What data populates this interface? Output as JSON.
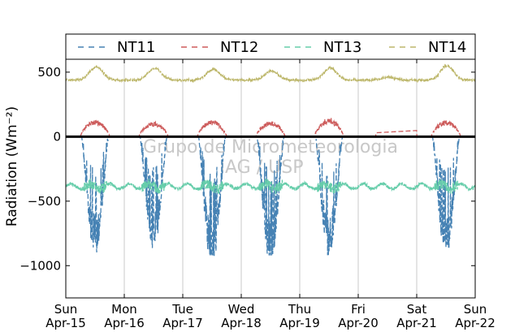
{
  "chart_data": {
    "type": "line",
    "title": "",
    "ylabel": "Radiation",
    "ylabel_unit_math": "(Wm⁻²)",
    "xlabel": "",
    "ylim": [
      -1250,
      600
    ],
    "yticks": [
      500,
      0,
      -500,
      -1000
    ],
    "ytick_labels": [
      "500",
      "0",
      "−500",
      "−1000"
    ],
    "x_tick_labels": [
      {
        "day": "Sun",
        "date": "Apr-15"
      },
      {
        "day": "Mon",
        "date": "Apr-16"
      },
      {
        "day": "Tue",
        "date": "Apr-17"
      },
      {
        "day": "Wed",
        "date": "Apr-18"
      },
      {
        "day": "Thu",
        "date": "Apr-19"
      },
      {
        "day": "Fri",
        "date": "Apr-20"
      },
      {
        "day": "Sat",
        "date": "Apr-21"
      },
      {
        "day": "Sun",
        "date": "Apr-22"
      }
    ],
    "x_range_days": [
      0,
      7
    ],
    "grid": "vertical",
    "legend_position": "top",
    "zero_line": true,
    "watermark": [
      "Grupo de Micrometeorologia",
      "IAG / USP"
    ],
    "series": [
      {
        "name": "NT11",
        "color": "#4682b4",
        "style": "dashed",
        "description_values": {
          "night": 0,
          "daily_min": [
            -800,
            -770,
            -900,
            -880,
            -820,
            null,
            -820
          ],
          "missing_days": [
            5
          ]
        }
      },
      {
        "name": "NT12",
        "color": "#cd5c5c",
        "style": "dashed",
        "description_values": {
          "night": 0,
          "daily_peak": [
            125,
            110,
            125,
            115,
            140,
            55,
            120
          ]
        }
      },
      {
        "name": "NT13",
        "color": "#66cdaa",
        "style": "dashed",
        "description_values": {
          "mean": -385,
          "range": [
            -440,
            -340
          ]
        }
      },
      {
        "name": "NT14",
        "color": "#bdb76b",
        "style": "dashed",
        "description_values": {
          "night": 440,
          "daily_peak": [
            540,
            530,
            520,
            510,
            530,
            460,
            550
          ]
        }
      }
    ]
  }
}
